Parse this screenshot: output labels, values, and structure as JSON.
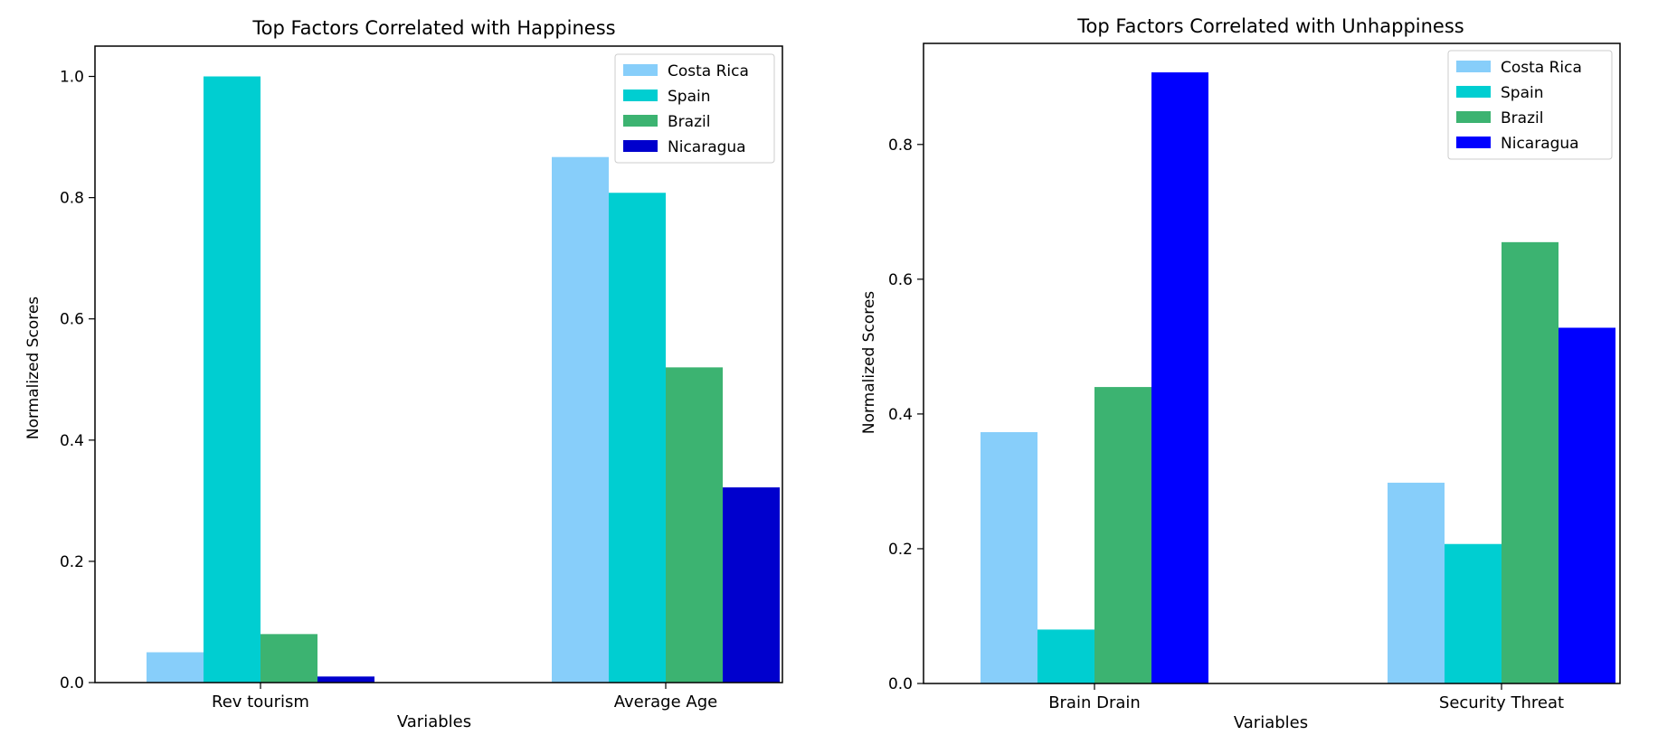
{
  "chart_data": [
    {
      "type": "bar",
      "title": "Top Factors Correlated with Happiness",
      "xlabel": "Variables",
      "ylabel": "Normalized Scores",
      "categories": [
        "Rev tourism",
        "Average Age"
      ],
      "ylim": [
        0,
        1.05
      ],
      "yticks": [
        "0.0",
        "0.2",
        "0.4",
        "0.6",
        "0.8",
        "1.0"
      ],
      "legend_position": "top-right",
      "grid": false,
      "series": [
        {
          "name": "Costa Rica",
          "color": "#87cefa",
          "values": [
            0.05,
            0.867
          ]
        },
        {
          "name": "Spain",
          "color": "#00ced1",
          "values": [
            1.0,
            0.808
          ]
        },
        {
          "name": "Brazil",
          "color": "#3cb371",
          "values": [
            0.08,
            0.52
          ]
        },
        {
          "name": "Nicaragua",
          "color": "#0000cd",
          "values": [
            0.01,
            0.322
          ]
        }
      ]
    },
    {
      "type": "bar",
      "title": "Top Factors Correlated with Unhappiness",
      "xlabel": "Variables",
      "ylabel": "Normalized Scores",
      "categories": [
        "Brain Drain",
        "Security Threat"
      ],
      "ylim": [
        0,
        0.95
      ],
      "yticks": [
        "0.0",
        "0.2",
        "0.4",
        "0.6",
        "0.8"
      ],
      "legend_position": "top-right",
      "grid": false,
      "series": [
        {
          "name": "Costa Rica",
          "color": "#87cefa",
          "values": [
            0.373,
            0.298
          ]
        },
        {
          "name": "Spain",
          "color": "#00ced1",
          "values": [
            0.08,
            0.207
          ]
        },
        {
          "name": "Brazil",
          "color": "#3cb371",
          "values": [
            0.44,
            0.655
          ]
        },
        {
          "name": "Nicaragua",
          "color": "#0000ff",
          "values": [
            0.907,
            0.528
          ]
        }
      ]
    }
  ]
}
